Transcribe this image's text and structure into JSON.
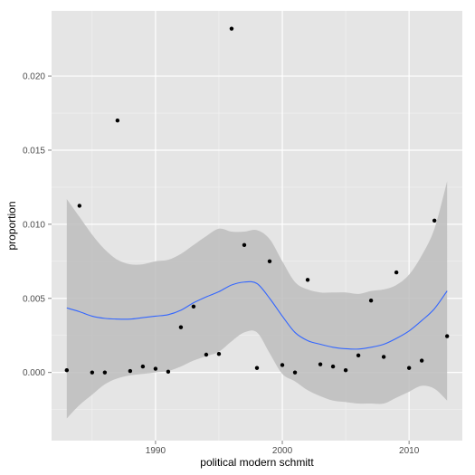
{
  "chart_data": {
    "type": "scatter",
    "title": "",
    "xlabel": "political modern schmitt",
    "ylabel": "proportion",
    "xlim": [
      1981.8,
      2014.2
    ],
    "ylim": [
      -0.0046,
      0.0244
    ],
    "x_ticks": [
      1990,
      2000,
      2010
    ],
    "y_ticks": [
      0.0,
      0.005,
      0.01,
      0.015,
      0.02
    ],
    "x_tick_labels": [
      "1990",
      "2000",
      "2010"
    ],
    "y_tick_labels": [
      "0.000",
      "0.005",
      "0.010",
      "0.015",
      "0.020"
    ],
    "grid": true,
    "points": [
      {
        "x": 1983,
        "y": 0.00015
      },
      {
        "x": 1984,
        "y": 0.01125
      },
      {
        "x": 1985,
        "y": 0.0
      },
      {
        "x": 1986,
        "y": 0.0
      },
      {
        "x": 1987,
        "y": 0.017
      },
      {
        "x": 1988,
        "y": 0.0001
      },
      {
        "x": 1989,
        "y": 0.0004
      },
      {
        "x": 1990,
        "y": 0.00025
      },
      {
        "x": 1991,
        "y": 5e-05
      },
      {
        "x": 1992,
        "y": 0.00305
      },
      {
        "x": 1993,
        "y": 0.00445
      },
      {
        "x": 1994,
        "y": 0.0012
      },
      {
        "x": 1995,
        "y": 0.00125
      },
      {
        "x": 1996,
        "y": 0.0232
      },
      {
        "x": 1997,
        "y": 0.0086
      },
      {
        "x": 1998,
        "y": 0.0003
      },
      {
        "x": 1999,
        "y": 0.0075
      },
      {
        "x": 2000,
        "y": 0.0005
      },
      {
        "x": 2001,
        "y": 0.0
      },
      {
        "x": 2002,
        "y": 0.00625
      },
      {
        "x": 2003,
        "y": 0.00055
      },
      {
        "x": 2004,
        "y": 0.0004
      },
      {
        "x": 2005,
        "y": 0.00015
      },
      {
        "x": 2006,
        "y": 0.00115
      },
      {
        "x": 2007,
        "y": 0.00485
      },
      {
        "x": 2008,
        "y": 0.00105
      },
      {
        "x": 2009,
        "y": 0.00675
      },
      {
        "x": 2010,
        "y": 0.0003
      },
      {
        "x": 2011,
        "y": 0.0008
      },
      {
        "x": 2012,
        "y": 0.01025
      },
      {
        "x": 2013,
        "y": 0.00245
      }
    ],
    "smooth": {
      "x": [
        1983,
        1984,
        1985,
        1986,
        1987,
        1988,
        1989,
        1990,
        1991,
        1992,
        1993,
        1994,
        1995,
        1996,
        1997,
        1998,
        1999,
        2000,
        2001,
        2002,
        2003,
        2004,
        2005,
        2006,
        2007,
        2008,
        2009,
        2010,
        2011,
        2012,
        2013
      ],
      "y": [
        0.00435,
        0.0041,
        0.0038,
        0.00365,
        0.0036,
        0.0036,
        0.0037,
        0.0038,
        0.0039,
        0.0042,
        0.0047,
        0.0051,
        0.00545,
        0.0059,
        0.0061,
        0.006,
        0.005,
        0.0038,
        0.0027,
        0.00215,
        0.0019,
        0.0017,
        0.0016,
        0.00158,
        0.0017,
        0.0019,
        0.0023,
        0.0028,
        0.0035,
        0.0043,
        0.0055
      ],
      "upper": [
        0.0117,
        0.0105,
        0.0093,
        0.0083,
        0.0076,
        0.0073,
        0.0073,
        0.0075,
        0.0076,
        0.008,
        0.0086,
        0.0092,
        0.0097,
        0.0095,
        0.0095,
        0.0096,
        0.009,
        0.0075,
        0.0061,
        0.0056,
        0.0054,
        0.0054,
        0.0054,
        0.0053,
        0.0055,
        0.0056,
        0.0059,
        0.0066,
        0.0079,
        0.0097,
        0.0129
      ],
      "lower": [
        -0.0031,
        -0.0022,
        -0.0015,
        -0.0008,
        -0.0004,
        -0.0002,
        -0.0001,
        0.0,
        0.0001,
        0.0004,
        0.0008,
        0.0011,
        0.0014,
        0.0021,
        0.0027,
        0.0027,
        0.0013,
        -0.0001,
        -0.0006,
        -0.0012,
        -0.0016,
        -0.0019,
        -0.002,
        -0.0021,
        -0.0021,
        -0.0021,
        -0.0017,
        -0.0013,
        -0.0009,
        -0.0011,
        -0.0019
      ]
    },
    "colors": {
      "panel": "#e5e5e5",
      "grid_major": "#ffffff",
      "grid_minor": "#f2f2f2",
      "band": "#bdbdbd",
      "line": "#3366ff",
      "point": "#000000",
      "tick": "#7f7f7f"
    }
  }
}
